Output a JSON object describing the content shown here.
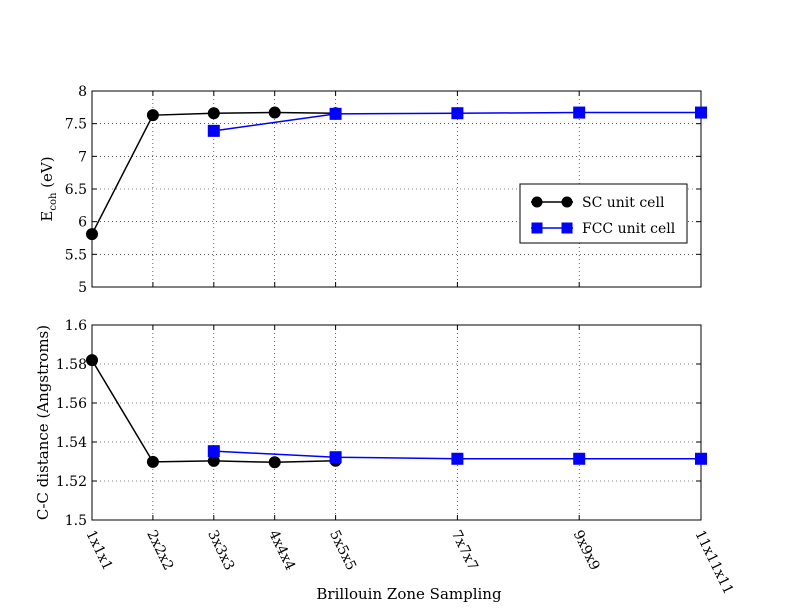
{
  "chart_data": [
    {
      "type": "line",
      "ylabel_main": "E",
      "ylabel_sub": "coh",
      "ylabel_unit": " (eV)",
      "xlabel": "",
      "x_categories": [
        "1x1x1",
        "2x2x2",
        "3x3x3",
        "4x4x4",
        "5x5x5",
        "7x7x7",
        "9x9x9",
        "11x11x11"
      ],
      "x_positions": [
        1,
        2,
        3,
        4,
        5,
        7,
        9,
        11
      ],
      "ylim": [
        5,
        8
      ],
      "yticks": [
        5,
        5.5,
        6,
        6.5,
        7,
        7.5,
        8
      ],
      "ytick_labels": [
        "5",
        "5.5",
        "6",
        "6.5",
        "7",
        "7.5",
        "8"
      ],
      "grid": true,
      "legend": "right",
      "series": [
        {
          "name": "SC unit cell",
          "color": "#000000",
          "marker": "circle",
          "x": [
            1,
            2,
            3,
            4,
            5
          ],
          "y": [
            5.81,
            7.63,
            7.66,
            7.67,
            7.66
          ]
        },
        {
          "name": "FCC unit cell",
          "color": "#0000ff",
          "marker": "square",
          "x": [
            3,
            5,
            7,
            9,
            11
          ],
          "y": [
            7.39,
            7.65,
            7.66,
            7.67,
            7.67
          ]
        }
      ]
    },
    {
      "type": "line",
      "ylabel": "C-C distance (Angstroms)",
      "xlabel": "Brillouin Zone Sampling",
      "x_categories": [
        "1x1x1",
        "2x2x2",
        "3x3x3",
        "4x4x4",
        "5x5x5",
        "7x7x7",
        "9x9x9",
        "11x11x11"
      ],
      "x_positions": [
        1,
        2,
        3,
        4,
        5,
        7,
        9,
        11
      ],
      "ylim": [
        1.5,
        1.6
      ],
      "yticks": [
        1.5,
        1.52,
        1.54,
        1.56,
        1.58,
        1.6
      ],
      "ytick_labels": [
        "1.5",
        "1.52",
        "1.54",
        "1.56",
        "1.58",
        "1.6"
      ],
      "grid": true,
      "series": [
        {
          "name": "SC unit cell",
          "color": "#000000",
          "marker": "circle",
          "x": [
            1,
            2,
            3,
            4,
            5
          ],
          "y": [
            1.582,
            1.5298,
            1.5303,
            1.5296,
            1.5304
          ]
        },
        {
          "name": "FCC unit cell",
          "color": "#0000ff",
          "marker": "square",
          "x": [
            3,
            5,
            7,
            9,
            11
          ],
          "y": [
            1.5353,
            1.5322,
            1.5314,
            1.5314,
            1.5314
          ]
        }
      ]
    }
  ]
}
